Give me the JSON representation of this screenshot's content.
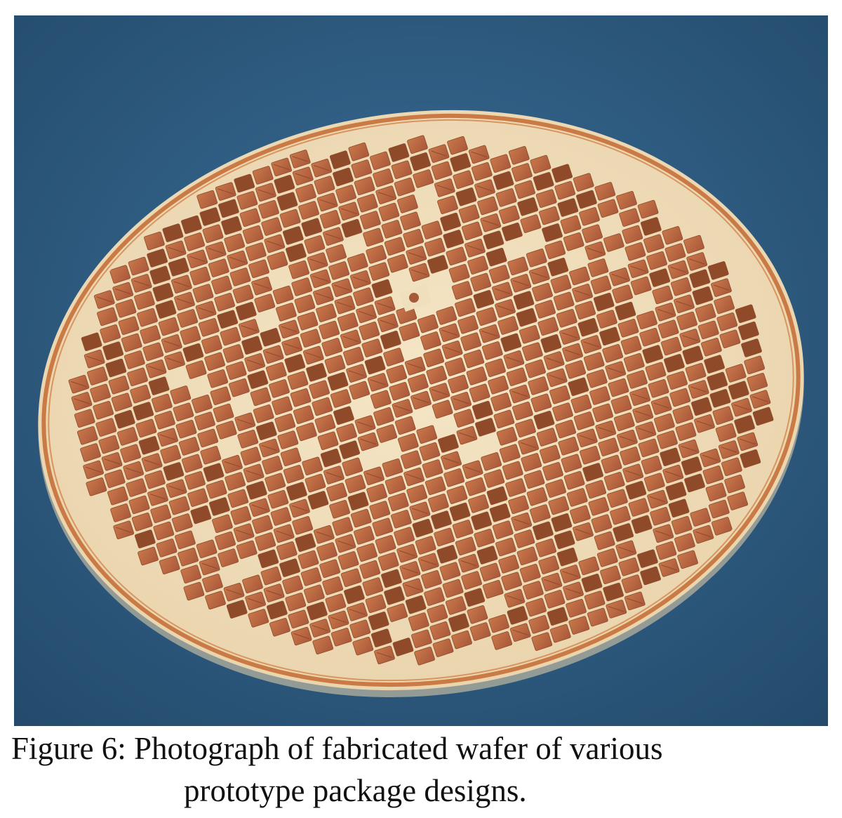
{
  "figure": {
    "caption_line_1": "Figure 6: Photograph of fabricated wafer of various",
    "caption_line_2": "prototype package designs."
  },
  "photo": {
    "subject": "wafer-photograph",
    "colors": {
      "background": "#2f5f86",
      "background_dark": "#23496a",
      "wafer_substrate": "#f0dfbc",
      "wafer_rim": "#c97a45",
      "copper_die": "#bf6b3f",
      "copper_dark": "#8f4a2a",
      "street": "#e8c9a2"
    }
  }
}
